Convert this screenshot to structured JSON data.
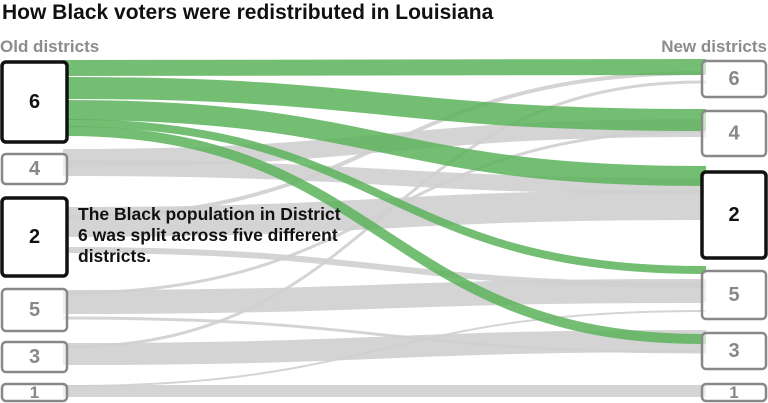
{
  "title": "How Black voters were redistributed in Louisiana",
  "labels": {
    "old": "Old districts",
    "new": "New districts"
  },
  "annotation": "The Black population in District 6 was split across five different districts.",
  "colors": {
    "highlight": "#5cb35c",
    "flow": "#cfcfcf",
    "node_fill": "#ffffff",
    "node_stroke": "#888888",
    "node_text": "#888888",
    "highlight_node_stroke": "#111111",
    "highlight_node_text": "#111111"
  },
  "old_districts": [
    {
      "id": "6",
      "highlighted": true
    },
    {
      "id": "4",
      "highlighted": false
    },
    {
      "id": "2",
      "highlighted": true
    },
    {
      "id": "5",
      "highlighted": false
    },
    {
      "id": "3",
      "highlighted": false
    },
    {
      "id": "1",
      "highlighted": false
    }
  ],
  "new_districts": [
    {
      "id": "6",
      "highlighted": false
    },
    {
      "id": "4",
      "highlighted": false
    },
    {
      "id": "2",
      "highlighted": true
    },
    {
      "id": "5",
      "highlighted": false
    },
    {
      "id": "3",
      "highlighted": false
    },
    {
      "id": "1",
      "highlighted": false
    }
  ],
  "flows": [
    {
      "from": "4",
      "to": "4",
      "highlight": false
    },
    {
      "from": "4",
      "to": "2",
      "highlight": false
    },
    {
      "from": "2",
      "to": "6",
      "highlight": false
    },
    {
      "from": "2",
      "to": "2",
      "highlight": false
    },
    {
      "from": "2",
      "to": "5",
      "highlight": false
    },
    {
      "from": "5",
      "to": "4",
      "highlight": false
    },
    {
      "from": "5",
      "to": "5",
      "highlight": false
    },
    {
      "from": "5",
      "to": "3",
      "highlight": false
    },
    {
      "from": "3",
      "to": "6",
      "highlight": false
    },
    {
      "from": "3",
      "to": "3",
      "highlight": false
    },
    {
      "from": "1",
      "to": "5",
      "highlight": false
    },
    {
      "from": "1",
      "to": "1",
      "highlight": false
    },
    {
      "from": "6",
      "to": "6",
      "highlight": true
    },
    {
      "from": "6",
      "to": "4",
      "highlight": true
    },
    {
      "from": "6",
      "to": "2",
      "highlight": true
    },
    {
      "from": "6",
      "to": "5",
      "highlight": true
    },
    {
      "from": "6",
      "to": "3",
      "highlight": true
    }
  ]
}
